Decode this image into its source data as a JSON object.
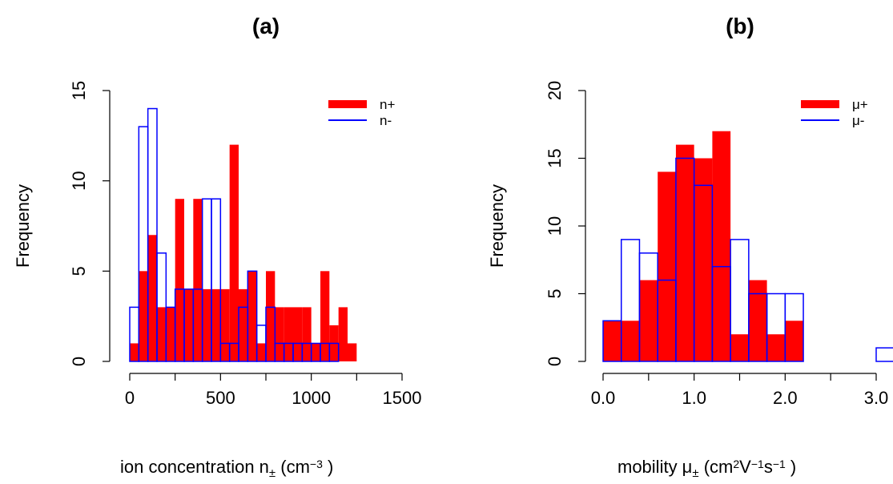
{
  "chart_data": [
    {
      "type": "bar",
      "title": "(a)",
      "xlabel": {
        "text": "ion concentration n",
        "sub": "±",
        "unit_open": " (cm",
        "sup": "−3",
        "unit_close": " )"
      },
      "ylabel": "Frequency",
      "xlim": [
        0,
        1500
      ],
      "ylim": [
        0,
        15
      ],
      "xticks": [
        0,
        500,
        1000,
        1500
      ],
      "xtick_labels": [
        "0",
        "500",
        "1000",
        "1500"
      ],
      "yticks": [
        0,
        5,
        10,
        15
      ],
      "ytick_labels": [
        "0",
        "5",
        "10",
        "15"
      ],
      "bin_width": 50,
      "bin_start": 0,
      "legend": {
        "position": "top-right",
        "entries": [
          "n+",
          "n-"
        ]
      },
      "series": [
        {
          "name": "n+",
          "style": "filled",
          "color": "#ff0000",
          "values": [
            1,
            5,
            7,
            3,
            3,
            9,
            4,
            9,
            4,
            4,
            4,
            12,
            4,
            5,
            1,
            5,
            3,
            3,
            3,
            3,
            1,
            5,
            2,
            3,
            1,
            0,
            0,
            0,
            0,
            0,
            0,
            0,
            0,
            0,
            0,
            0,
            0,
            0,
            0,
            0,
            0,
            0,
            0,
            0,
            0,
            0,
            0,
            0,
            0,
            0
          ]
        },
        {
          "name": "n-",
          "style": "outline",
          "color": "#0000ff",
          "values": [
            3,
            13,
            14,
            6,
            3,
            4,
            4,
            4,
            9,
            9,
            1,
            1,
            3,
            5,
            2,
            3,
            1,
            1,
            1,
            1,
            1,
            1,
            1,
            0,
            0,
            0,
            0,
            0,
            0,
            0,
            0,
            0,
            0,
            0,
            0,
            0,
            0,
            0,
            0,
            0,
            0,
            0,
            0,
            0,
            0,
            0,
            0,
            0,
            0,
            0
          ]
        }
      ]
    },
    {
      "type": "bar",
      "title": "(b)",
      "xlabel": {
        "text": "mobility μ",
        "sub": "±",
        "unit_open": " (cm",
        "sup": "2",
        "mid": "V",
        "sup2": "−1",
        "mid2": "s",
        "sup3": "−1",
        "unit_close": " )"
      },
      "ylabel": "Frequency",
      "xlim": [
        0,
        3.0
      ],
      "ylim": [
        0,
        20
      ],
      "xticks": [
        0.0,
        1.0,
        2.0,
        3.0
      ],
      "xtick_labels": [
        "0.0",
        "1.0",
        "2.0",
        "3.0"
      ],
      "yticks": [
        0,
        5,
        10,
        15,
        20
      ],
      "ytick_labels": [
        "0",
        "5",
        "10",
        "15",
        "20"
      ],
      "bin_width": 0.2,
      "bin_start": 0,
      "legend": {
        "position": "top-right",
        "entries": [
          "μ+",
          "μ-"
        ]
      },
      "series": [
        {
          "name": "μ+",
          "style": "filled",
          "color": "#ff0000",
          "values": [
            3,
            3,
            6,
            14,
            16,
            15,
            17,
            2,
            6,
            2,
            3,
            0,
            0,
            0,
            0,
            0
          ]
        },
        {
          "name": "μ-",
          "style": "outline",
          "color": "#0000ff",
          "values": [
            3,
            9,
            8,
            6,
            15,
            13,
            7,
            9,
            5,
            5,
            5,
            0,
            0,
            0,
            0,
            1
          ]
        }
      ]
    }
  ]
}
